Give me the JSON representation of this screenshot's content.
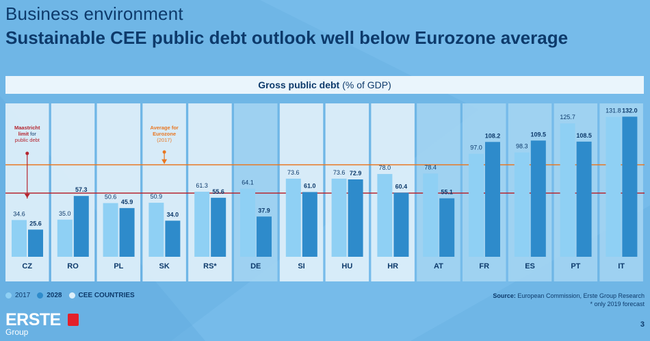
{
  "header": {
    "title": "Business environment",
    "subtitle": "Sustainable CEE public debt outlook well below Eurozone average"
  },
  "chart_header": {
    "bold": "Gross public debt",
    "normal": "(% of GDP)"
  },
  "annotations": {
    "maastricht": [
      "Maastricht",
      "limit",
      " for",
      "public debt"
    ],
    "eurozone": [
      "Average for",
      "Eurozone",
      "(2017)"
    ]
  },
  "legend": {
    "label_2017": "2017",
    "label_2028": "2028",
    "label_cee": "CEE COUNTRIES"
  },
  "source": {
    "label": "Source:",
    "text": "European Commission, Erste Group Research",
    "note": "* only 2019 forecast"
  },
  "footer": {
    "logo_name": "ERSTE",
    "logo_group": "Group",
    "page": "3"
  },
  "colors": {
    "bar_2017": "#8fd0f4",
    "bar_2028": "#2e8bcb",
    "cee_panel": "#dff0fa",
    "other_panel": "#a7d6f2",
    "maastricht_line": "#b5252f",
    "eurozone_line": "#e87722",
    "label": "#0d3a6b"
  },
  "chart_data": {
    "type": "bar",
    "title": "Gross public debt (% of GDP)",
    "categories": [
      "CZ",
      "RO",
      "PL",
      "SK",
      "RS*",
      "DE",
      "SI",
      "HU",
      "HR",
      "AT",
      "FR",
      "ES",
      "PT",
      "IT"
    ],
    "cee_countries": [
      "CZ",
      "RO",
      "PL",
      "SK",
      "RS*",
      "SI",
      "HU",
      "HR"
    ],
    "series": [
      {
        "name": "2017",
        "values": [
          34.6,
          35.0,
          50.6,
          50.9,
          61.3,
          64.1,
          73.6,
          73.6,
          78.0,
          78.4,
          97.0,
          98.3,
          125.7,
          131.8
        ]
      },
      {
        "name": "2028",
        "values": [
          25.6,
          57.3,
          45.9,
          34.0,
          55.6,
          37.9,
          61.0,
          72.9,
          60.4,
          55.1,
          108.2,
          109.5,
          108.5,
          132.0
        ]
      }
    ],
    "reference_lines": [
      {
        "name": "Maastricht limit for public debt",
        "value": 60
      },
      {
        "name": "Average for Eurozone (2017)",
        "value": 86.7
      }
    ],
    "ylim": [
      0,
      145
    ],
    "grid": false,
    "legend": "bottom-left"
  }
}
